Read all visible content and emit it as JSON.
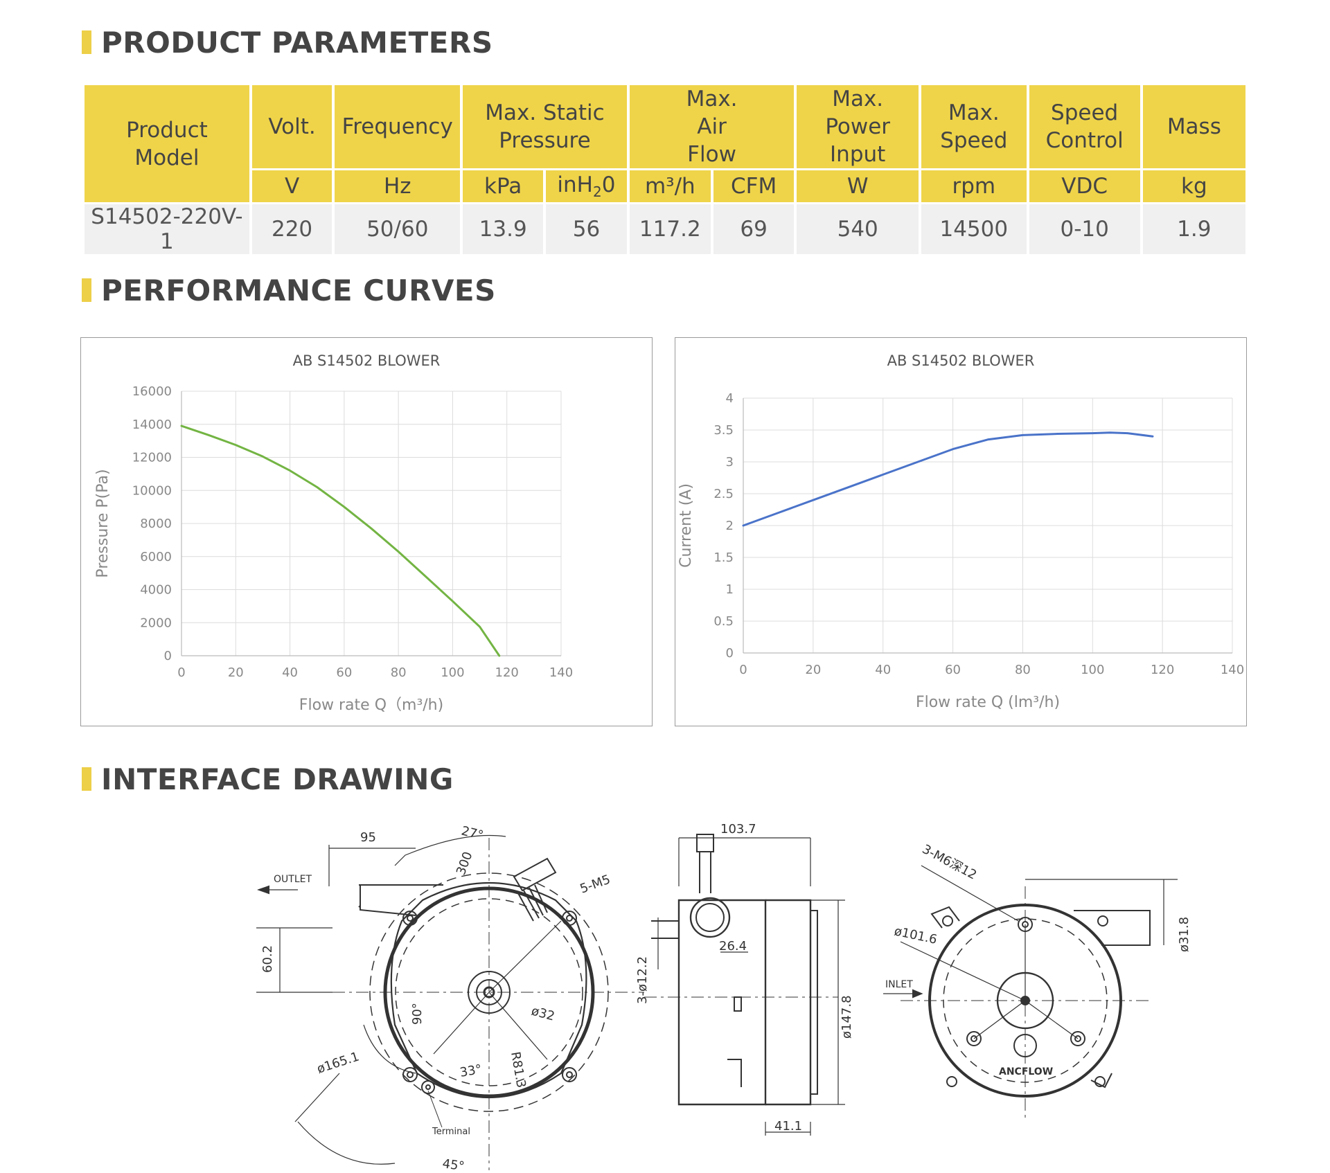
{
  "sections": {
    "params_title": "PRODUCT PARAMETERS",
    "curves_title": "PERFORMANCE CURVES",
    "drawing_title": "INTERFACE DRAWING"
  },
  "table": {
    "h_model": "Product Model",
    "h_volt": "Volt.",
    "h_freq": "Frequency",
    "h_pressure": "Max. Static Pressure",
    "h_airflow": "Max. Air Flow",
    "h_power": "Max. Power Input",
    "h_speed": "Max. Speed",
    "h_control": "Speed Control",
    "h_mass": "Mass",
    "u_volt": "V",
    "u_freq": "Hz",
    "u_kpa": "kPa",
    "u_inh2o_pre": "inH",
    "u_inh2o_sub": "2",
    "u_inh2o_post": "0",
    "u_m3h": "m³/h",
    "u_cfm": "CFM",
    "u_w": "W",
    "u_rpm": "rpm",
    "u_vdc": "VDC",
    "u_kg": "kg",
    "row": {
      "model": "S14502-220V-1",
      "volt": "220",
      "freq": "50/60",
      "kpa": "13.9",
      "inh2o": "56",
      "m3h": "117.2",
      "cfm": "69",
      "power": "540",
      "speed": "14500",
      "control": "0-10",
      "mass": "1.9"
    }
  },
  "chart_data": [
    {
      "type": "line",
      "title": "AB S14502 BLOWER",
      "xlabel": "Flow rate  Q（m³/h)",
      "ylabel": "Pressure  P(Pa)",
      "xlim": [
        0,
        140
      ],
      "ylim": [
        0,
        16000
      ],
      "xticks": [
        "0",
        "20",
        "40",
        "60",
        "80",
        "100",
        "120",
        "140"
      ],
      "yticks": [
        "0",
        "2000",
        "4000",
        "6000",
        "8000",
        "10000",
        "12000",
        "14000",
        "16000"
      ],
      "grid": true,
      "color": "#73b443",
      "series": [
        {
          "x": [
            0,
            10,
            20,
            30,
            40,
            50,
            60,
            70,
            80,
            90,
            100,
            110,
            117.2
          ],
          "y": [
            13900,
            13350,
            12750,
            12050,
            11200,
            10200,
            9000,
            7700,
            6300,
            4800,
            3300,
            1750,
            0
          ]
        }
      ]
    },
    {
      "type": "line",
      "title": "AB S14502 BLOWER",
      "xlabel": "Flow rate    Q (lm³/h)",
      "ylabel": "Current  (A)",
      "xlim": [
        0,
        140
      ],
      "ylim": [
        0,
        4
      ],
      "xticks": [
        "0",
        "20",
        "40",
        "60",
        "80",
        "100",
        "120",
        "140"
      ],
      "yticks": [
        "0",
        "0.5",
        "1",
        "1.5",
        "2",
        "2.5",
        "3",
        "3.5",
        "4"
      ],
      "grid": true,
      "color": "#4a73c9",
      "series": [
        {
          "x": [
            0,
            10,
            20,
            30,
            40,
            50,
            60,
            70,
            80,
            90,
            100,
            105,
            110,
            117.2
          ],
          "y": [
            2.0,
            2.2,
            2.4,
            2.6,
            2.8,
            3.0,
            3.2,
            3.35,
            3.42,
            3.44,
            3.45,
            3.46,
            3.45,
            3.4
          ]
        }
      ]
    }
  ],
  "drawing": {
    "dim_95": "95",
    "dim_27": "27°",
    "dim_300": "300",
    "dim_5m5": "5-M5",
    "outlet": "OUTLET",
    "dim_60_2": "60.2",
    "dim_90": "90°",
    "dim_d32": "ø32",
    "dim_d165": "ø165.1",
    "dim_33": "33°",
    "dim_r81": "R81.3",
    "terminal": "Terminal",
    "dim_45": "45°",
    "dim_103": "103.7",
    "dim_26": "26.4",
    "dim_3d12": "3-ø12.2",
    "dim_d147": "ø147.8",
    "dim_41": "41.1",
    "dim_3m6": "3-M6深12",
    "dim_d101": "ø101.6",
    "inlet": "INLET",
    "dim_d31": "ø31.8",
    "logo_text": "ANCFLOW"
  }
}
